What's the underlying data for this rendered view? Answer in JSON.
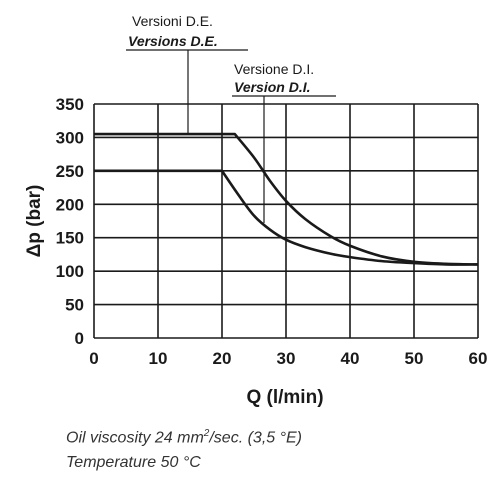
{
  "chart_data": {
    "type": "line",
    "xlabel": "Q (l/min)",
    "ylabel": "Δp (bar)",
    "xlim": [
      0,
      60
    ],
    "ylim": [
      0,
      350
    ],
    "xticks": [
      0,
      10,
      20,
      30,
      40,
      50,
      60
    ],
    "yticks": [
      0,
      50,
      100,
      150,
      200,
      250,
      300,
      350
    ],
    "grid": true,
    "series": [
      {
        "name": "Versioni D.E.",
        "name_en": "Versions D.E.",
        "points": [
          [
            0,
            305
          ],
          [
            22,
            305
          ],
          [
            25,
            270
          ],
          [
            27.5,
            235
          ],
          [
            30,
            205
          ],
          [
            33,
            178
          ],
          [
            37,
            152
          ],
          [
            40,
            138
          ],
          [
            45,
            122
          ],
          [
            50,
            114
          ],
          [
            55,
            111
          ],
          [
            60,
            110
          ]
        ]
      },
      {
        "name": "Versione D.I.",
        "name_en": "Version D.I.",
        "points": [
          [
            0,
            250
          ],
          [
            20,
            250
          ],
          [
            22.5,
            215
          ],
          [
            25,
            183
          ],
          [
            27.5,
            162
          ],
          [
            30,
            147
          ],
          [
            33,
            136
          ],
          [
            37,
            126
          ],
          [
            40,
            121
          ],
          [
            45,
            115
          ],
          [
            50,
            112
          ],
          [
            55,
            110
          ],
          [
            60,
            110
          ]
        ]
      }
    ]
  },
  "notes": {
    "viscosity_prefix": "Oil viscosity 24 mm",
    "viscosity_sup": "2",
    "viscosity_suffix": "/sec. (3,5 °E)",
    "temperature": "Temperature 50 °C"
  }
}
